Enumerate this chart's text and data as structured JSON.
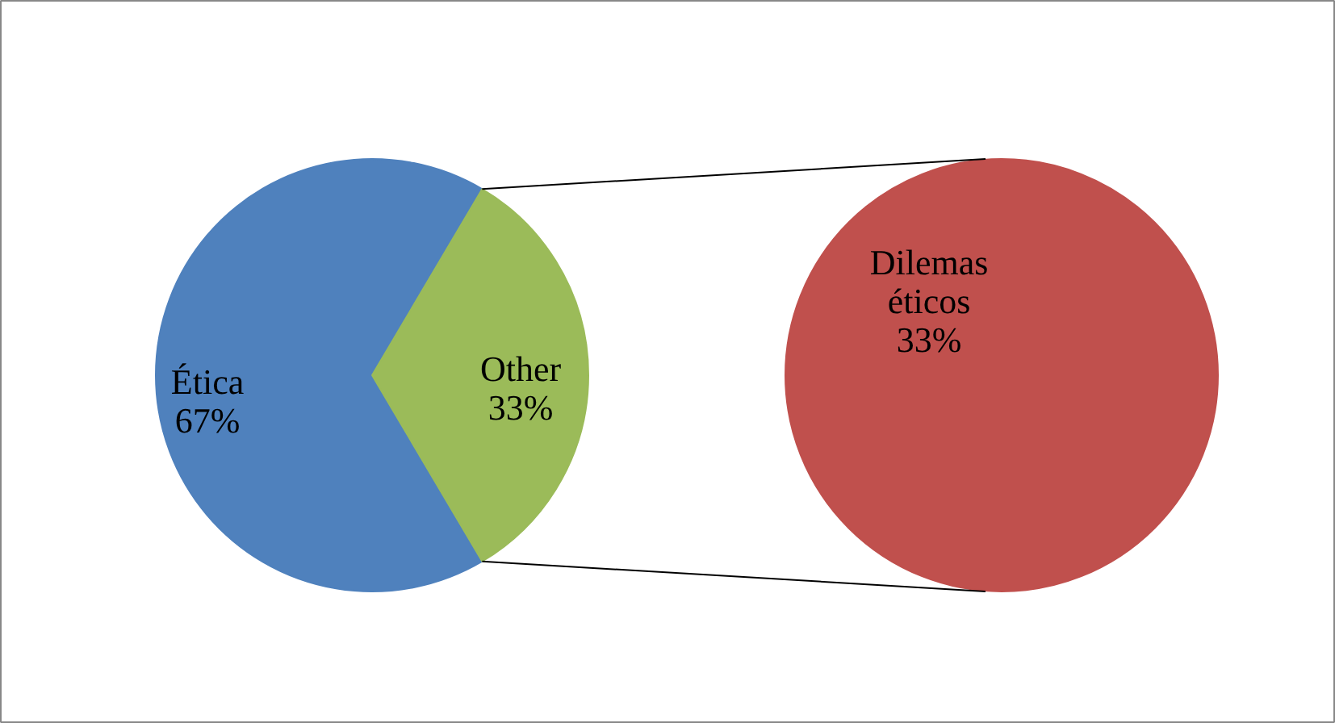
{
  "chart_data": [
    {
      "type": "pie",
      "categories": [
        "Ética",
        "Other"
      ],
      "values": [
        67,
        33
      ],
      "colors": [
        "#4f81bd",
        "#9bbb59"
      ],
      "value_labels": [
        "67%",
        "33%"
      ]
    },
    {
      "type": "pie",
      "categories": [
        "Dilemas éticos"
      ],
      "values": [
        33
      ],
      "colors": [
        "#c0504d"
      ],
      "value_labels": [
        "33%"
      ]
    }
  ]
}
